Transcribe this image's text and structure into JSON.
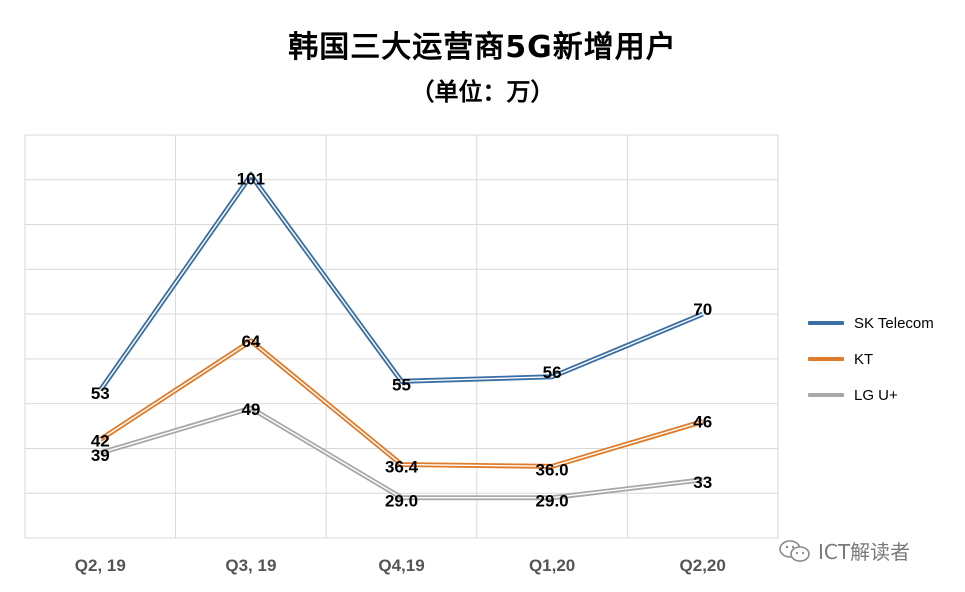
{
  "title": "韩国三大运营商5G新增用户",
  "subtitle": "（单位：万）",
  "watermark": "ICT解读者",
  "colors": {
    "sk_telecom": "#3a6ea5",
    "kt": "#e07b2a",
    "lg_uplus": "#a8a8a8",
    "grid": "#d9d9d9"
  },
  "chart_data": {
    "type": "line",
    "categories": [
      "Q2, 19",
      "Q3, 19",
      "Q4,19",
      "Q1,20",
      "Q2,20"
    ],
    "ylim": [
      20,
      110
    ],
    "grid": true,
    "legend_position": "right",
    "series": [
      {
        "name": "SK Telecom",
        "values": [
          53,
          101,
          55,
          56,
          70
        ],
        "labels": [
          "53",
          "101",
          "55",
          "56",
          "70"
        ]
      },
      {
        "name": "KT",
        "values": [
          42,
          64,
          36.4,
          36.0,
          46
        ],
        "labels": [
          "42",
          "64",
          "36.4",
          "36.0",
          "46"
        ]
      },
      {
        "name": "LG U+",
        "values": [
          39,
          49,
          29.0,
          29.0,
          33
        ],
        "labels": [
          "39",
          "49",
          "29.0",
          "29.0",
          "33"
        ]
      }
    ]
  }
}
